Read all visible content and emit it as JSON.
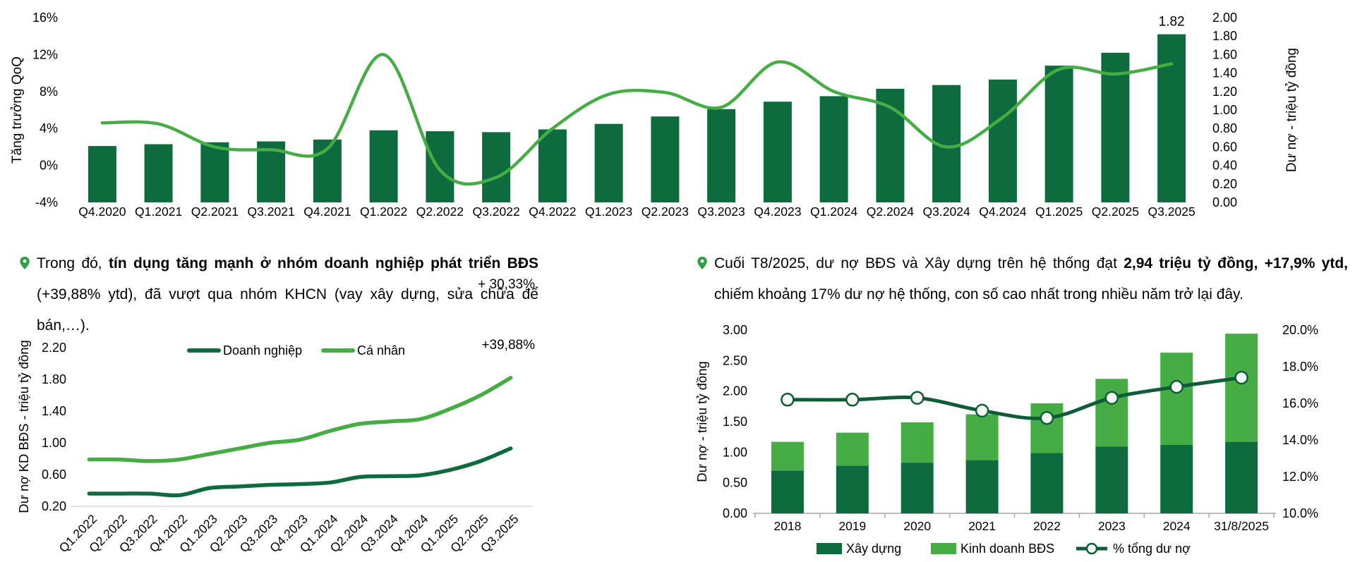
{
  "colors": {
    "dark_green": "#0d6b3d",
    "light_green": "#45ad43",
    "line_dark_green": "#0e5c38",
    "marker_fill": "#f4f9f4",
    "axis_gray": "#a6a6a6",
    "baseline_gray": "#d9d9d9",
    "pin_green": "#2f9e46",
    "text": "#000000"
  },
  "bullets": [
    {
      "icon": "pin-icon",
      "segments": [
        {
          "t": "Trong đó, ",
          "b": false
        },
        {
          "t": "tín dụng tăng mạnh ở nhóm doanh nghiệp phát triển BĐS",
          "b": true
        },
        {
          "t": " (+39,88% ytd), đã vượt qua nhóm KHCN (vay xây dựng, sửa chữa để bán,…).",
          "b": false
        }
      ]
    },
    {
      "icon": "pin-icon",
      "segments": [
        {
          "t": "Cuối T8/2025, dư nợ BĐS và Xây dựng trên hệ thống đạt ",
          "b": false
        },
        {
          "t": "2,94 triệu tỷ đồng, +17,9% ytd,",
          "b": true
        },
        {
          "t": " chiếm khoảng 17% dư nợ hệ thống, con số cao nhất trong nhiều năm trở lại đây.",
          "b": false
        }
      ]
    }
  ],
  "chart_data": [
    {
      "id": "credit-qoq",
      "type": "bar+line",
      "categories": [
        "Q4.2020",
        "Q1.2021",
        "Q2.2021",
        "Q3.2021",
        "Q4.2021",
        "Q1.2022",
        "Q2.2022",
        "Q3.2022",
        "Q4.2022",
        "Q1.2023",
        "Q2.2023",
        "Q3.2023",
        "Q4.2023",
        "Q1.2024",
        "Q2.2024",
        "Q3.2024",
        "Q4.2024",
        "Q1.2025",
        "Q2.2025",
        "Q3.2025"
      ],
      "series": [
        {
          "name": "Dư nợ",
          "type": "bar",
          "axis": "right",
          "color": "#0d6b3d",
          "values": [
            0.61,
            0.63,
            0.65,
            0.66,
            0.68,
            0.78,
            0.77,
            0.76,
            0.79,
            0.85,
            0.93,
            1.01,
            1.09,
            1.15,
            1.23,
            1.27,
            1.33,
            1.48,
            1.62,
            1.82
          ]
        },
        {
          "name": "Tăng trưởng QoQ",
          "type": "line",
          "axis": "left",
          "color": "#45ad43",
          "values": [
            4.6,
            4.5,
            2.0,
            1.7,
            1.8,
            12.0,
            -0.5,
            -1.3,
            4.0,
            7.7,
            7.9,
            6.3,
            11.2,
            8.0,
            6.3,
            2.0,
            5.2,
            10.4,
            9.9,
            11.0
          ]
        }
      ],
      "left_axis": {
        "title": "Tăng trưởng QoQ",
        "min": -4,
        "max": 16,
        "ticks": [
          16,
          12,
          8,
          4,
          0,
          -4
        ],
        "tick_labels": [
          "16%",
          "12%",
          "8%",
          "4%",
          "0%",
          "-4%"
        ]
      },
      "right_axis": {
        "title": "Dư nợ - triệu tỷ đồng",
        "min": 0,
        "max": 2,
        "ticks": [
          2,
          1.8,
          1.6,
          1.4,
          1.2,
          1,
          0.8,
          0.6,
          0.4,
          0.2,
          0
        ],
        "tick_labels": [
          "2.00",
          "1.80",
          "1.60",
          "1.40",
          "1.20",
          "1.00",
          "0.80",
          "0.60",
          "0.40",
          "0.20",
          "0.00"
        ]
      },
      "point_label": {
        "text": "1.82",
        "category": "Q3.2025"
      },
      "grid": false
    },
    {
      "id": "kd-bds-lines",
      "type": "line",
      "categories": [
        "Q1.2022",
        "Q2.2022",
        "Q3.2022",
        "Q4.2022",
        "Q1.2023",
        "Q2.2023",
        "Q3.2023",
        "Q4.2023",
        "Q1.2024",
        "Q2.2024",
        "Q3.2024",
        "Q4.2024",
        "Q1.2025",
        "Q2.2025",
        "Q3.2025"
      ],
      "series": [
        {
          "name": "Doanh nghiệp",
          "color": "#0d6b3d",
          "values": [
            0.36,
            0.36,
            0.36,
            0.34,
            0.43,
            0.45,
            0.47,
            0.48,
            0.5,
            0.57,
            0.58,
            0.59,
            0.66,
            0.77,
            0.93
          ]
        },
        {
          "name": "Cá nhân",
          "color": "#45ad43",
          "values": [
            0.79,
            0.79,
            0.77,
            0.79,
            0.86,
            0.93,
            1.0,
            1.04,
            1.15,
            1.24,
            1.27,
            1.3,
            1.43,
            1.6,
            1.82
          ]
        }
      ],
      "y_axis": {
        "title": "Dư nợ KD BĐS - triệu tỷ đồng",
        "min": 0.2,
        "max": 2.2,
        "ticks": [
          2.2,
          1.8,
          1.4,
          1.0,
          0.6,
          0.2
        ],
        "tick_labels": [
          "2.20",
          "1.80",
          "1.40",
          "1.00",
          "0.60",
          "0.20"
        ]
      },
      "legend_position": "top",
      "annotations": [
        {
          "text": "+ 30,33%",
          "series": "Cá nhân"
        },
        {
          "text": "+39,88%",
          "series": "Doanh nghiệp"
        }
      ],
      "grid": false
    },
    {
      "id": "system-bds",
      "type": "stacked-bar+line",
      "categories": [
        "2018",
        "2019",
        "2020",
        "2021",
        "2022",
        "2023",
        "2024",
        "31/8/2025"
      ],
      "series": [
        {
          "name": "Xây dựng",
          "type": "bar",
          "axis": "left",
          "color": "#0d6b3d",
          "values": [
            0.7,
            0.78,
            0.83,
            0.87,
            0.99,
            1.09,
            1.12,
            1.17
          ]
        },
        {
          "name": "Kinh doanh BĐS",
          "type": "bar",
          "axis": "left",
          "color": "#45ad43",
          "values": [
            0.47,
            0.54,
            0.66,
            0.75,
            0.81,
            1.11,
            1.51,
            1.77
          ]
        },
        {
          "name": "% tổng dư nợ",
          "type": "line",
          "axis": "right",
          "color": "#0e5c38",
          "values": [
            16.2,
            16.2,
            16.3,
            15.6,
            15.2,
            16.3,
            16.9,
            17.4
          ]
        }
      ],
      "left_axis": {
        "title": "Dư nợ - triệu tỷ đồng",
        "min": 0,
        "max": 3,
        "ticks": [
          3,
          2.5,
          2,
          1.5,
          1,
          0.5,
          0
        ],
        "tick_labels": [
          "3.00",
          "2.50",
          "2.00",
          "1.50",
          "1.00",
          "0.50",
          "0.00"
        ]
      },
      "right_axis": {
        "min": 10,
        "max": 20,
        "ticks": [
          20,
          18,
          16,
          14,
          12,
          10
        ],
        "tick_labels": [
          "20.0%",
          "18.0%",
          "16.0%",
          "14.0%",
          "12.0%",
          "10.0%"
        ]
      },
      "legend_position": "bottom",
      "grid": false
    }
  ]
}
